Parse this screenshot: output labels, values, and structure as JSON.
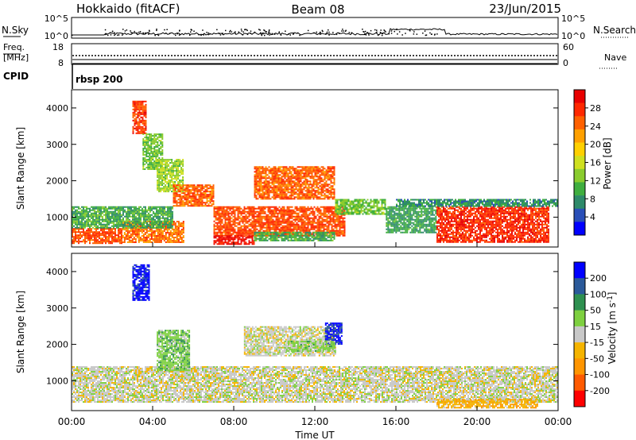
{
  "header": {
    "station": "Hokkaido (fitACF)",
    "beam": "Beam 08",
    "date": "23/Jun/2015"
  },
  "noise_panel": {
    "left_label": "N.Sky",
    "right_label": "N.Search",
    "left_ticks": [
      "10^5",
      "10^0"
    ],
    "right_ticks": [
      "10^5",
      "10^0"
    ]
  },
  "freq_panel": {
    "left_label_1": "Freq.",
    "left_label_2": "[MHz]",
    "right_label": "Nave",
    "left_ticks": [
      "18",
      "8"
    ],
    "right_ticks": [
      "60",
      "0"
    ]
  },
  "cpid_panel": {
    "label": "CPID",
    "program": "rbsp 200"
  },
  "chart_data": [
    {
      "type": "heatmap",
      "title": "",
      "quantity": "Power",
      "xlabel": "",
      "ylabel": "Slant Range [km]",
      "x_unit": "hours UT",
      "xlim": [
        0,
        24
      ],
      "ylim": [
        180,
        4500
      ],
      "yticks": [
        1000,
        2000,
        3000,
        4000
      ],
      "colorbar": {
        "label": "Power [dB]",
        "ticks": [
          "28",
          "24",
          "20",
          "16",
          "12",
          "8",
          "4"
        ],
        "range": [
          0,
          32
        ],
        "colors": [
          "#0000ff",
          "#2a4fb8",
          "#2e8a6a",
          "#3fae3f",
          "#8acc2e",
          "#cfe020",
          "#ffd000",
          "#ffa000",
          "#ff6000",
          "#ff2800",
          "#e80000"
        ]
      },
      "regions": [
        {
          "t": [
            0.0,
            2.5
          ],
          "r": [
            300,
            700
          ],
          "value": 26
        },
        {
          "t": [
            2.5,
            5.5
          ],
          "r": [
            300,
            900
          ],
          "value": 24
        },
        {
          "t": [
            0.0,
            5.0
          ],
          "r": [
            700,
            1300
          ],
          "value": 10
        },
        {
          "t": [
            3.0,
            3.7
          ],
          "r": [
            3300,
            4200
          ],
          "value": 27
        },
        {
          "t": [
            3.5,
            4.5
          ],
          "r": [
            2300,
            3300
          ],
          "value": 12
        },
        {
          "t": [
            4.2,
            5.5
          ],
          "r": [
            1700,
            2600
          ],
          "value": 14
        },
        {
          "t": [
            5.0,
            7.0
          ],
          "r": [
            1300,
            1900
          ],
          "value": 25
        },
        {
          "t": [
            7.0,
            13.5
          ],
          "r": [
            500,
            1300
          ],
          "value": 26
        },
        {
          "t": [
            7.0,
            9.0
          ],
          "r": [
            250,
            500
          ],
          "value": 30
        },
        {
          "t": [
            9.0,
            13.0
          ],
          "r": [
            350,
            600
          ],
          "value": 10
        },
        {
          "t": [
            9.0,
            13.0
          ],
          "r": [
            1500,
            2400
          ],
          "value": 25
        },
        {
          "t": [
            13.0,
            15.5
          ],
          "r": [
            1100,
            1500
          ],
          "value": 12
        },
        {
          "t": [
            15.5,
            18.0
          ],
          "r": [
            600,
            1300
          ],
          "value": 9
        },
        {
          "t": [
            18.0,
            23.5
          ],
          "r": [
            300,
            1300
          ],
          "value": 28
        },
        {
          "t": [
            16.0,
            24.0
          ],
          "r": [
            1300,
            1500
          ],
          "value": 8
        }
      ]
    },
    {
      "type": "heatmap",
      "title": "",
      "quantity": "Velocity",
      "xlabel": "Time UT",
      "ylabel": "Slant Range [km]",
      "x_unit": "hours UT",
      "xlim": [
        0,
        24
      ],
      "ylim": [
        180,
        4500
      ],
      "xticks": [
        "00:00",
        "04:00",
        "08:00",
        "12:00",
        "16:00",
        "20:00",
        "00:00"
      ],
      "yticks": [
        1000,
        2000,
        3000,
        4000
      ],
      "colorbar": {
        "label": "Velocity [m s^-1]",
        "ticks": [
          "200",
          "100",
          "50",
          "15",
          "-15",
          "-50",
          "-100",
          "-200"
        ],
        "range": [
          -250,
          250
        ],
        "colors": [
          "#ff0000",
          "#ff5a00",
          "#ff9500",
          "#f5b400",
          "#c8c8c8",
          "#7ed040",
          "#2e9050",
          "#2b5a9a",
          "#0000ff"
        ]
      },
      "regions": [
        {
          "t": [
            0.0,
            24.0
          ],
          "r": [
            400,
            1400
          ],
          "value": 0
        },
        {
          "t": [
            3.0,
            3.8
          ],
          "r": [
            3200,
            4200
          ],
          "value": 220
        },
        {
          "t": [
            4.2,
            5.8
          ],
          "r": [
            1300,
            2400
          ],
          "value": 60
        },
        {
          "t": [
            8.5,
            13.0
          ],
          "r": [
            1700,
            2500
          ],
          "value": 0
        },
        {
          "t": [
            12.5,
            13.3
          ],
          "r": [
            2000,
            2600
          ],
          "value": 200
        },
        {
          "t": [
            10.5,
            13.0
          ],
          "r": [
            1800,
            2100
          ],
          "value": 45
        },
        {
          "t": [
            18.0,
            23.0
          ],
          "r": [
            250,
            500
          ],
          "value": -60
        }
      ]
    }
  ]
}
